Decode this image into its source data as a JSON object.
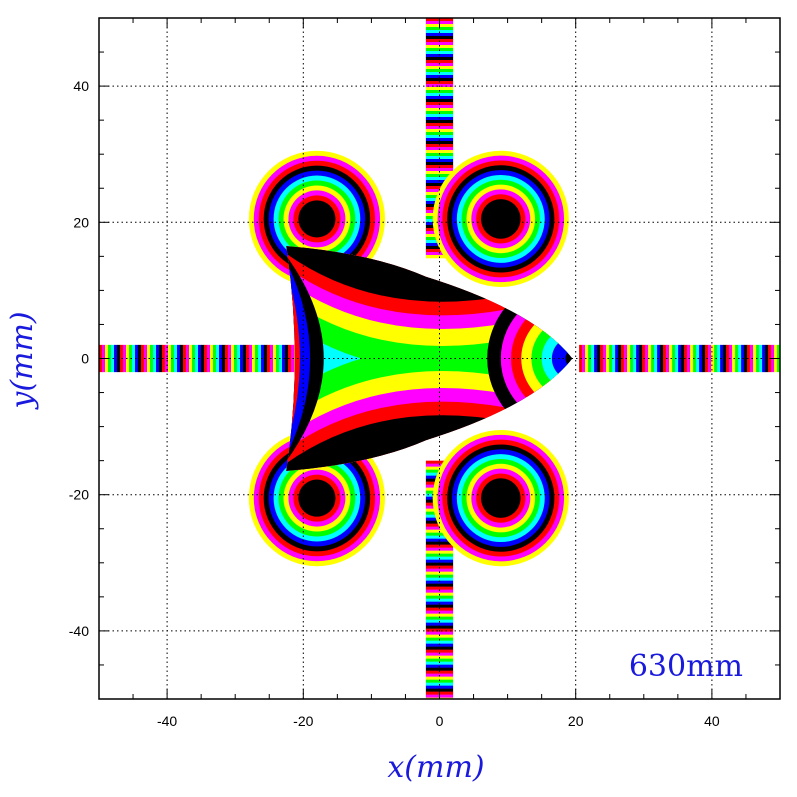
{
  "chart_data": {
    "type": "heatmap",
    "xlabel": "x(mm)",
    "ylabel": "y(mm)",
    "annotation": "630mm",
    "xlim": [
      -50,
      50
    ],
    "ylim": [
      -50,
      50
    ],
    "x_ticks": [
      -40,
      -20,
      0,
      20,
      40
    ],
    "y_ticks": [
      40,
      20,
      0,
      -20,
      -40
    ],
    "grid": true,
    "grid_style": "dotted",
    "color_cycle": [
      "#ff0000",
      "#ff00ff",
      "#ffff00",
      "#00ff00",
      "#00ffff",
      "#0000ff",
      "#000000"
    ],
    "circular_regions": [
      {
        "name": "upper-left pole",
        "cx": -18,
        "cy": 20.5,
        "outer_radius": 10,
        "core_radius": 2
      },
      {
        "name": "upper-right pole",
        "cx": 9,
        "cy": 20.5,
        "outer_radius": 10,
        "core_radius": 2.2
      },
      {
        "name": "lower-left pole",
        "cx": -18,
        "cy": -20.5,
        "outer_radius": 10,
        "core_radius": 2
      },
      {
        "name": "lower-right pole",
        "cx": 9,
        "cy": -20.5,
        "outer_radius": 10,
        "core_radius": 2.2
      }
    ],
    "central_region": {
      "name": "central saddle",
      "outline": [
        [
          -22.5,
          16.5
        ],
        [
          -2,
          12
        ],
        [
          19.5,
          0
        ],
        [
          -2,
          -12
        ],
        [
          -22.5,
          -16.5
        ],
        [
          -21,
          0
        ]
      ],
      "saddle_center": [
        -6,
        0
      ]
    },
    "stripe_bands": [
      {
        "name": "left arm",
        "x": [
          -50,
          -20.5
        ],
        "y": [
          -2,
          2
        ],
        "orientation": "vertical-stripes"
      },
      {
        "name": "right arm",
        "x": [
          20.5,
          50
        ],
        "y": [
          -2,
          2
        ],
        "orientation": "vertical-stripes"
      },
      {
        "name": "top arm",
        "x": [
          -2,
          2
        ],
        "y": [
          15,
          50
        ],
        "orientation": "horizontal-stripes"
      },
      {
        "name": "bottom arm",
        "x": [
          -2,
          2
        ],
        "y": [
          -50,
          -15
        ],
        "orientation": "horizontal-stripes"
      }
    ]
  }
}
